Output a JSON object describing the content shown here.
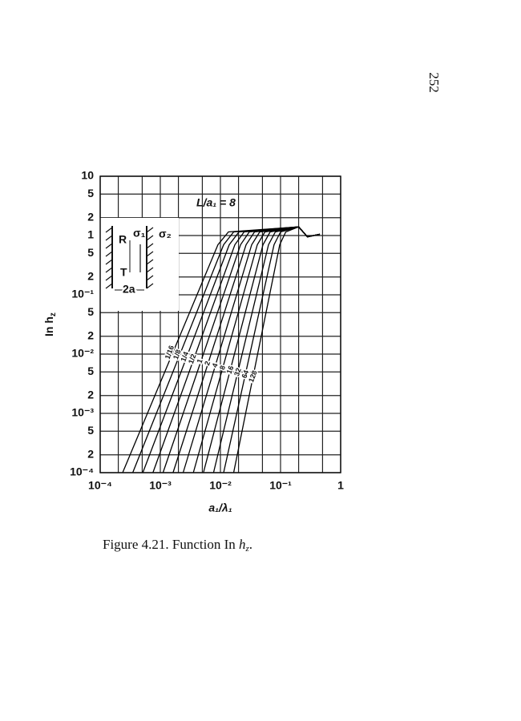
{
  "page_number": "252",
  "caption": {
    "text": "Figure 4.21. Function In ",
    "var": "h",
    "sub": "z",
    "end": "."
  },
  "chart_data": {
    "type": "line",
    "annotation": "L/a₁ = 8",
    "inset": {
      "r": "R",
      "t": "T",
      "sigma1": "σ₁",
      "sigma2": "σ₂",
      "width": "2a"
    },
    "x_label": "a₁/λ₁",
    "y_label": {
      "text": "In h",
      "sub": "z"
    },
    "log_x": true,
    "log_y": true,
    "grid": true,
    "xlim": [
      0.0001,
      1
    ],
    "ylim": [
      0.0001,
      10
    ],
    "xticks": [
      {
        "value": 0.0001,
        "label": "10⁻⁴"
      },
      {
        "value": 0.001,
        "label": "10⁻³"
      },
      {
        "value": 0.01,
        "label": "10⁻²"
      },
      {
        "value": 0.1,
        "label": "10⁻¹"
      },
      1
    ],
    "xminor": [
      0.0002,
      0.0005,
      0.002,
      0.005,
      0.02,
      0.05,
      0.2,
      0.5
    ],
    "yticks": [
      10,
      5,
      2,
      1,
      {
        "value": 0.5,
        "label": "5"
      },
      {
        "value": 0.2,
        "label": "2"
      },
      {
        "value": 0.1,
        "label": "10⁻¹"
      },
      {
        "value": 0.05,
        "label": "5"
      },
      {
        "value": 0.02,
        "label": "2"
      },
      {
        "value": 0.01,
        "label": "10⁻²"
      },
      {
        "value": 0.005,
        "label": "5"
      },
      {
        "value": 0.002,
        "label": "2"
      },
      {
        "value": 0.001,
        "label": "10⁻³"
      },
      {
        "value": 0.0005,
        "label": "5"
      },
      {
        "value": 0.0002,
        "label": "2"
      },
      {
        "value": 0.0001,
        "label": "10⁻⁴"
      }
    ],
    "series": [
      {
        "name": "1/16",
        "color": "#000000",
        "x": [
          0.000236,
          0.0091,
          0.0136,
          0.2,
          0.28,
          0.45
        ],
        "values": [
          0.0001,
          0.7,
          1.15,
          1.4,
          0.95,
          1.05
        ]
      },
      {
        "name": "1/8",
        "color": "#000000",
        "x": [
          0.000348,
          0.0113,
          0.0166,
          0.2,
          0.28,
          0.45
        ],
        "values": [
          0.0001,
          0.7,
          1.15,
          1.4,
          0.95,
          1.05
        ]
      },
      {
        "name": "1/4",
        "color": "#000000",
        "x": [
          0.000512,
          0.014,
          0.0203,
          0.2,
          0.28,
          0.45
        ],
        "values": [
          0.0001,
          0.7,
          1.15,
          1.4,
          0.95,
          1.05
        ]
      },
      {
        "name": "1/2",
        "color": "#000000",
        "x": [
          0.000753,
          0.0174,
          0.0247,
          0.2,
          0.28,
          0.45
        ],
        "values": [
          0.0001,
          0.7,
          1.15,
          1.4,
          0.95,
          1.05
        ]
      },
      {
        "name": "1",
        "color": "#000000",
        "x": [
          0.00111,
          0.0216,
          0.0302,
          0.2,
          0.28,
          0.45
        ],
        "values": [
          0.0001,
          0.7,
          1.15,
          1.4,
          0.95,
          1.05
        ]
      },
      {
        "name": "2",
        "color": "#000000",
        "x": [
          0.00163,
          0.0267,
          0.0369,
          0.2,
          0.28,
          0.45
        ],
        "values": [
          0.0001,
          0.7,
          1.15,
          1.4,
          0.95,
          1.05
        ]
      },
      {
        "name": "4",
        "color": "#000000",
        "x": [
          0.0024,
          0.0331,
          0.045,
          0.2,
          0.28,
          0.45
        ],
        "values": [
          0.0001,
          0.7,
          1.15,
          1.4,
          0.95,
          1.05
        ]
      },
      {
        "name": "8",
        "color": "#000000",
        "x": [
          0.00354,
          0.041,
          0.055,
          0.2,
          0.28,
          0.45
        ],
        "values": [
          0.0001,
          0.7,
          1.15,
          1.4,
          0.95,
          1.05
        ]
      },
      {
        "name": "16",
        "color": "#000000",
        "x": [
          0.00521,
          0.051,
          0.067,
          0.2,
          0.28,
          0.45
        ],
        "values": [
          0.0001,
          0.7,
          1.15,
          1.4,
          0.95,
          1.05
        ]
      },
      {
        "name": "32",
        "color": "#000000",
        "x": [
          0.00767,
          0.063,
          0.082,
          0.2,
          0.28,
          0.45
        ],
        "values": [
          0.0001,
          0.7,
          1.15,
          1.4,
          0.95,
          1.05
        ]
      },
      {
        "name": "64",
        "color": "#000000",
        "x": [
          0.0113,
          0.078,
          0.1,
          0.2,
          0.28,
          0.45
        ],
        "values": [
          0.0001,
          0.7,
          1.15,
          1.4,
          0.95,
          1.05
        ]
      },
      {
        "name": "128",
        "color": "#000000",
        "x": [
          0.0166,
          0.097,
          0.122,
          0.2,
          0.28,
          0.45
        ],
        "values": [
          0.0001,
          0.7,
          1.15,
          1.4,
          0.95,
          1.05
        ]
      }
    ]
  }
}
